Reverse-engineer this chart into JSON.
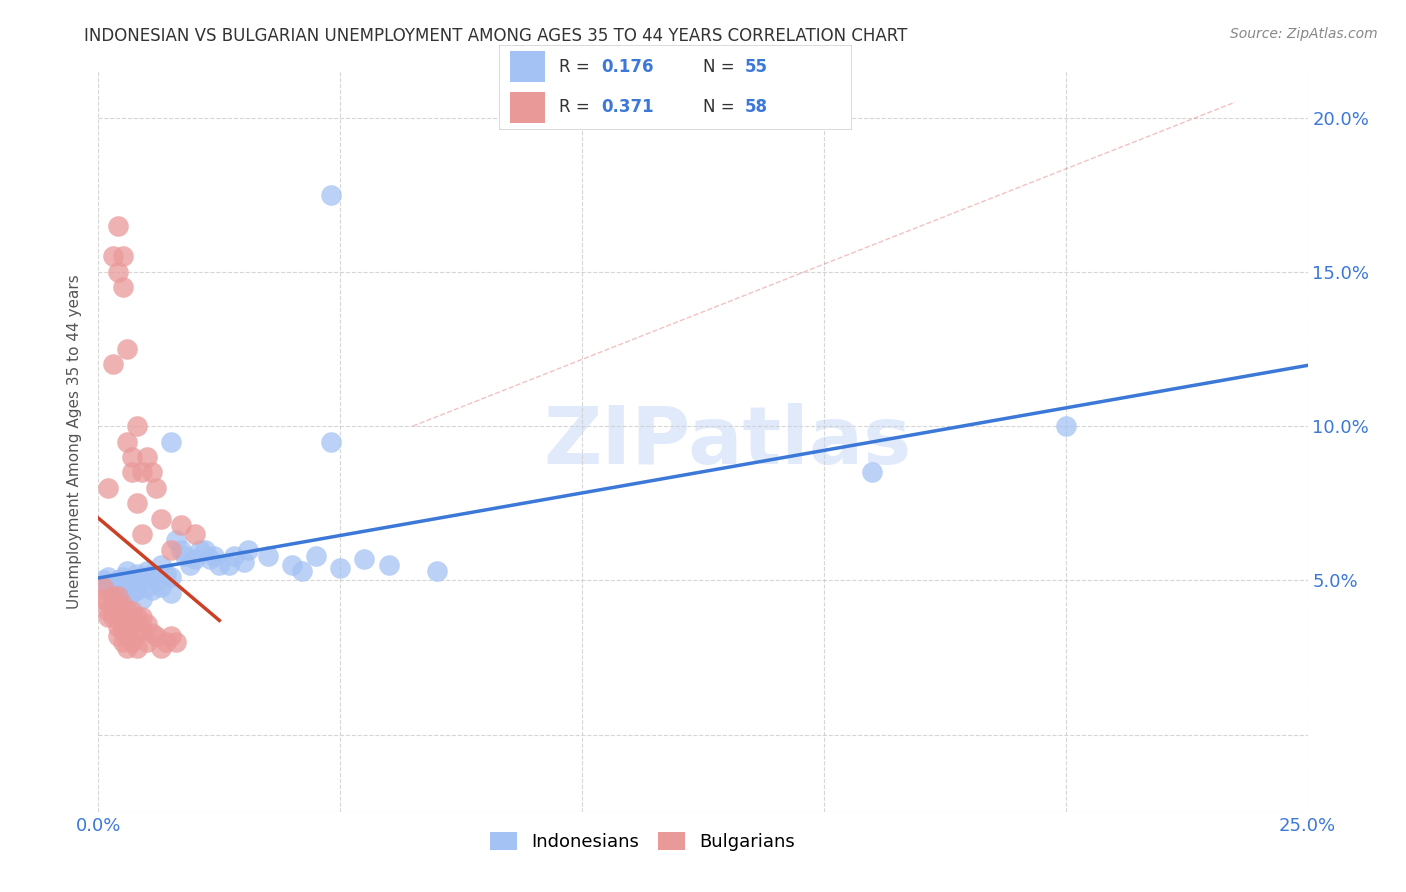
{
  "title": "INDONESIAN VS BULGARIAN UNEMPLOYMENT AMONG AGES 35 TO 44 YEARS CORRELATION CHART",
  "source": "Source: ZipAtlas.com",
  "ylabel": "Unemployment Among Ages 35 to 44 years",
  "xlim": [
    0.0,
    0.25
  ],
  "ylim": [
    -0.025,
    0.215
  ],
  "xticks": [
    0.0,
    0.05,
    0.1,
    0.15,
    0.2,
    0.25
  ],
  "xticklabels": [
    "0.0%",
    "",
    "",
    "",
    "",
    "25.0%"
  ],
  "yticks": [
    0.0,
    0.05,
    0.1,
    0.15,
    0.2
  ],
  "yticklabels_right": [
    "",
    "5.0%",
    "10.0%",
    "15.0%",
    "20.0%"
  ],
  "legend_r1": "R = 0.176",
  "legend_n1": "N = 55",
  "legend_r2": "R = 0.371",
  "legend_n2": "N = 58",
  "indonesian_color": "#a4c2f4",
  "bulgarian_color": "#ea9999",
  "indonesian_line_color": "#3c78d8",
  "bulgarian_line_color": "#cc4125",
  "diagonal_line_color": "#e06666",
  "watermark_color": "#c9daf8",
  "background_color": "#ffffff",
  "indonesian_scatter": [
    [
      0.001,
      0.05
    ],
    [
      0.002,
      0.051
    ],
    [
      0.002,
      0.048
    ],
    [
      0.003,
      0.046
    ],
    [
      0.003,
      0.044
    ],
    [
      0.004,
      0.05
    ],
    [
      0.004,
      0.047
    ],
    [
      0.005,
      0.051
    ],
    [
      0.005,
      0.049
    ],
    [
      0.005,
      0.045
    ],
    [
      0.006,
      0.053
    ],
    [
      0.006,
      0.049
    ],
    [
      0.007,
      0.05
    ],
    [
      0.007,
      0.046
    ],
    [
      0.008,
      0.052
    ],
    [
      0.008,
      0.047
    ],
    [
      0.009,
      0.051
    ],
    [
      0.009,
      0.044
    ],
    [
      0.01,
      0.053
    ],
    [
      0.01,
      0.048
    ],
    [
      0.011,
      0.052
    ],
    [
      0.011,
      0.047
    ],
    [
      0.012,
      0.05
    ],
    [
      0.013,
      0.055
    ],
    [
      0.013,
      0.048
    ],
    [
      0.014,
      0.052
    ],
    [
      0.015,
      0.051
    ],
    [
      0.015,
      0.046
    ],
    [
      0.016,
      0.063
    ],
    [
      0.017,
      0.06
    ],
    [
      0.018,
      0.058
    ],
    [
      0.019,
      0.055
    ],
    [
      0.02,
      0.057
    ],
    [
      0.021,
      0.06
    ],
    [
      0.022,
      0.06
    ],
    [
      0.023,
      0.057
    ],
    [
      0.024,
      0.058
    ],
    [
      0.025,
      0.055
    ],
    [
      0.027,
      0.055
    ],
    [
      0.028,
      0.058
    ],
    [
      0.03,
      0.056
    ],
    [
      0.031,
      0.06
    ],
    [
      0.035,
      0.058
    ],
    [
      0.04,
      0.055
    ],
    [
      0.042,
      0.053
    ],
    [
      0.045,
      0.058
    ],
    [
      0.05,
      0.054
    ],
    [
      0.055,
      0.057
    ],
    [
      0.06,
      0.055
    ],
    [
      0.07,
      0.053
    ],
    [
      0.015,
      0.095
    ],
    [
      0.048,
      0.095
    ],
    [
      0.2,
      0.1
    ],
    [
      0.16,
      0.085
    ],
    [
      0.048,
      0.175
    ]
  ],
  "bulgarian_scatter": [
    [
      0.001,
      0.048
    ],
    [
      0.001,
      0.044
    ],
    [
      0.002,
      0.043
    ],
    [
      0.002,
      0.04
    ],
    [
      0.002,
      0.038
    ],
    [
      0.003,
      0.045
    ],
    [
      0.003,
      0.042
    ],
    [
      0.003,
      0.038
    ],
    [
      0.004,
      0.045
    ],
    [
      0.004,
      0.04
    ],
    [
      0.004,
      0.035
    ],
    [
      0.004,
      0.032
    ],
    [
      0.005,
      0.042
    ],
    [
      0.005,
      0.038
    ],
    [
      0.005,
      0.034
    ],
    [
      0.005,
      0.03
    ],
    [
      0.006,
      0.04
    ],
    [
      0.006,
      0.036
    ],
    [
      0.006,
      0.032
    ],
    [
      0.006,
      0.028
    ],
    [
      0.007,
      0.04
    ],
    [
      0.007,
      0.036
    ],
    [
      0.007,
      0.03
    ],
    [
      0.008,
      0.038
    ],
    [
      0.008,
      0.033
    ],
    [
      0.008,
      0.028
    ],
    [
      0.009,
      0.038
    ],
    [
      0.009,
      0.034
    ],
    [
      0.01,
      0.036
    ],
    [
      0.01,
      0.03
    ],
    [
      0.011,
      0.033
    ],
    [
      0.012,
      0.032
    ],
    [
      0.013,
      0.028
    ],
    [
      0.014,
      0.03
    ],
    [
      0.015,
      0.032
    ],
    [
      0.016,
      0.03
    ],
    [
      0.002,
      0.08
    ],
    [
      0.003,
      0.12
    ],
    [
      0.003,
      0.155
    ],
    [
      0.004,
      0.165
    ],
    [
      0.004,
      0.15
    ],
    [
      0.005,
      0.145
    ],
    [
      0.005,
      0.155
    ],
    [
      0.006,
      0.125
    ],
    [
      0.006,
      0.095
    ],
    [
      0.007,
      0.09
    ],
    [
      0.007,
      0.085
    ],
    [
      0.008,
      0.1
    ],
    [
      0.008,
      0.075
    ],
    [
      0.009,
      0.085
    ],
    [
      0.009,
      0.065
    ],
    [
      0.01,
      0.09
    ],
    [
      0.011,
      0.085
    ],
    [
      0.012,
      0.08
    ],
    [
      0.013,
      0.07
    ],
    [
      0.015,
      0.06
    ],
    [
      0.017,
      0.068
    ],
    [
      0.02,
      0.065
    ]
  ]
}
